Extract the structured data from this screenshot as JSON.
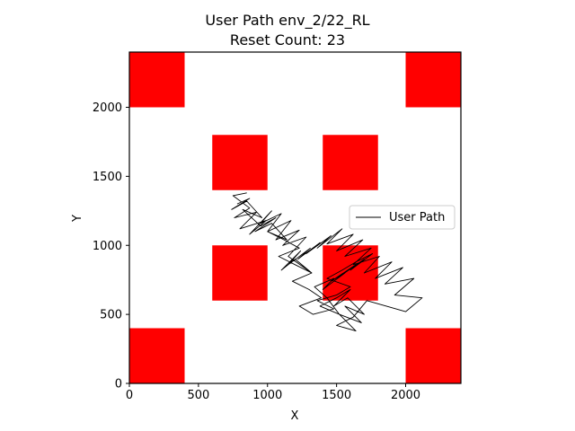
{
  "chart_data": {
    "type": "line",
    "title": "User Path env_2/22_RL",
    "subtitle": "Reset Count: 23",
    "xlabel": "X",
    "ylabel": "Y",
    "xlim": [
      0,
      2400
    ],
    "ylim": [
      0,
      2400
    ],
    "xticks": [
      0,
      500,
      1000,
      1500,
      2000
    ],
    "yticks": [
      0,
      500,
      1000,
      1500,
      2000
    ],
    "grid": false,
    "legend_position": "right",
    "obstacle_color": "#ff0000",
    "line_color": "#000000",
    "obstacles": [
      {
        "x": [
          0,
          400
        ],
        "y": [
          2000,
          2400
        ]
      },
      {
        "x": [
          2000,
          2400
        ],
        "y": [
          2000,
          2400
        ]
      },
      {
        "x": [
          600,
          1000
        ],
        "y": [
          1400,
          1800
        ]
      },
      {
        "x": [
          1400,
          1800
        ],
        "y": [
          1400,
          1800
        ]
      },
      {
        "x": [
          600,
          1000
        ],
        "y": [
          600,
          1000
        ]
      },
      {
        "x": [
          1400,
          1800
        ],
        "y": [
          600,
          1000
        ]
      },
      {
        "x": [
          0,
          400
        ],
        "y": [
          0,
          400
        ]
      },
      {
        "x": [
          2000,
          2400
        ],
        "y": [
          0,
          400
        ]
      }
    ],
    "series": [
      {
        "name": "User Path",
        "x": [
          850,
          750,
          870,
          760,
          920,
          800,
          990,
          870,
          1030,
          950,
          1100,
          1000,
          1170,
          1060,
          1230,
          1110,
          1280,
          1150,
          1320,
          1200,
          1100,
          1240,
          1150,
          1310,
          1220,
          1380,
          1280,
          1460,
          1360,
          1540,
          1430,
          1620,
          1500,
          1690,
          1560,
          1750,
          1620,
          1810,
          1700,
          1900,
          1780,
          1980,
          1850,
          2060,
          1920,
          2120,
          2000,
          1860,
          1720,
          1620,
          1500,
          1640,
          1520,
          1680,
          1560,
          1700,
          1580,
          1480,
          1600,
          1500,
          1380,
          1520,
          1430,
          1340,
          1480,
          1400,
          1560,
          1460,
          1640,
          1530,
          1700,
          1600,
          1760,
          1640,
          1540,
          1430,
          1600,
          1500,
          1360,
          1480,
          1330,
          1230,
          1390,
          1300,
          1180,
          1320,
          1200,
          1080,
          1230,
          1120,
          1000,
          1140,
          1030,
          910,
          1060,
          950,
          820,
          960,
          850,
          740,
          870,
          780
        ],
        "y": [
          1380,
          1360,
          1270,
          1200,
          1240,
          1120,
          1180,
          1080,
          1250,
          1160,
          1230,
          1100,
          1180,
          1040,
          1110,
          1000,
          1060,
          920,
          800,
          900,
          820,
          960,
          860,
          980,
          900,
          1020,
          940,
          1070,
          980,
          1120,
          1010,
          1080,
          960,
          1040,
          920,
          980,
          860,
          920,
          800,
          880,
          760,
          840,
          720,
          760,
          640,
          620,
          520,
          560,
          600,
          480,
          420,
          380,
          500,
          440,
          560,
          500,
          620,
          560,
          680,
          620,
          560,
          500,
          620,
          700,
          760,
          680,
          800,
          740,
          860,
          780,
          900,
          820,
          940,
          880,
          820,
          760,
          700,
          640,
          600,
          540,
          500,
          560,
          620,
          680,
          740,
          800,
          860,
          920,
          980,
          1040,
          1100,
          1040,
          1160,
          1100,
          1200,
          1140,
          1260,
          1200,
          1320,
          1260,
          1340,
          1300
        ]
      }
    ]
  }
}
